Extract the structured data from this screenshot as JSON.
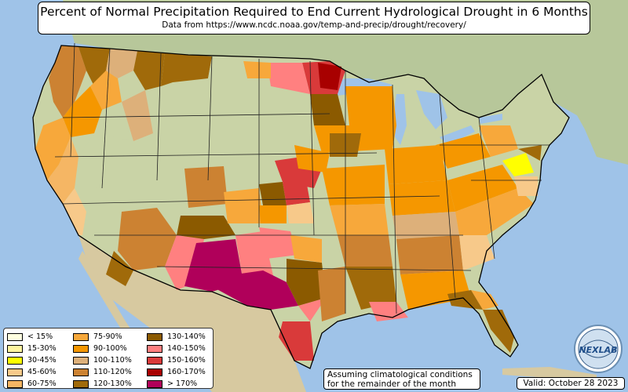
{
  "title": "Percent of Normal Precipitation Required to End Current Hydrological Drought in 6 Months",
  "subtitle": "Data from https://www.ncdc.noaa.gov/temp-and-precip/drought/recovery/",
  "note": "Assuming climatological conditions for the remainder of the month",
  "valid": "Valid: October 28 2023",
  "logo_text": "NEXLAB",
  "colors": {
    "ocean": "#9fc3e8",
    "land_base": "#c9d3a6",
    "canada_land": "#b7c79a",
    "mexico_land": "#d7c9a0",
    "state_line": "#222222",
    "c1": "#ffffe0",
    "c2": "#fff5a0",
    "c3": "#ffff00",
    "c4": "#f7c98a",
    "c5": "#f5b664",
    "c6": "#f7a83b",
    "c7": "#f59700",
    "c8": "#ddb07a",
    "c9": "#cc8232",
    "c10": "#a06a0a",
    "c11": "#8b5a00",
    "c12": "#ff8080",
    "c13": "#d93a3a",
    "c14": "#a80000",
    "c15": "#b0005a"
  },
  "legend": [
    {
      "label": "< 15%",
      "color": "#ffffe0"
    },
    {
      "label": "15-30%",
      "color": "#fff5a0"
    },
    {
      "label": "30-45%",
      "color": "#ffff00"
    },
    {
      "label": "45-60%",
      "color": "#f7c98a"
    },
    {
      "label": "60-75%",
      "color": "#f5b664"
    },
    {
      "label": "75-90%",
      "color": "#f7a83b"
    },
    {
      "label": "90-100%",
      "color": "#f59700"
    },
    {
      "label": "100-110%",
      "color": "#ddb07a"
    },
    {
      "label": "110-120%",
      "color": "#cc8232"
    },
    {
      "label": "120-130%",
      "color": "#a06a0a"
    },
    {
      "label": "130-140%",
      "color": "#8b5a00"
    },
    {
      "label": "140-150%",
      "color": "#ff8080"
    },
    {
      "label": "150-160%",
      "color": "#d93a3a"
    },
    {
      "label": "160-170%",
      "color": "#a80000"
    },
    {
      "label": "> 170%",
      "color": "#b0005a"
    }
  ]
}
